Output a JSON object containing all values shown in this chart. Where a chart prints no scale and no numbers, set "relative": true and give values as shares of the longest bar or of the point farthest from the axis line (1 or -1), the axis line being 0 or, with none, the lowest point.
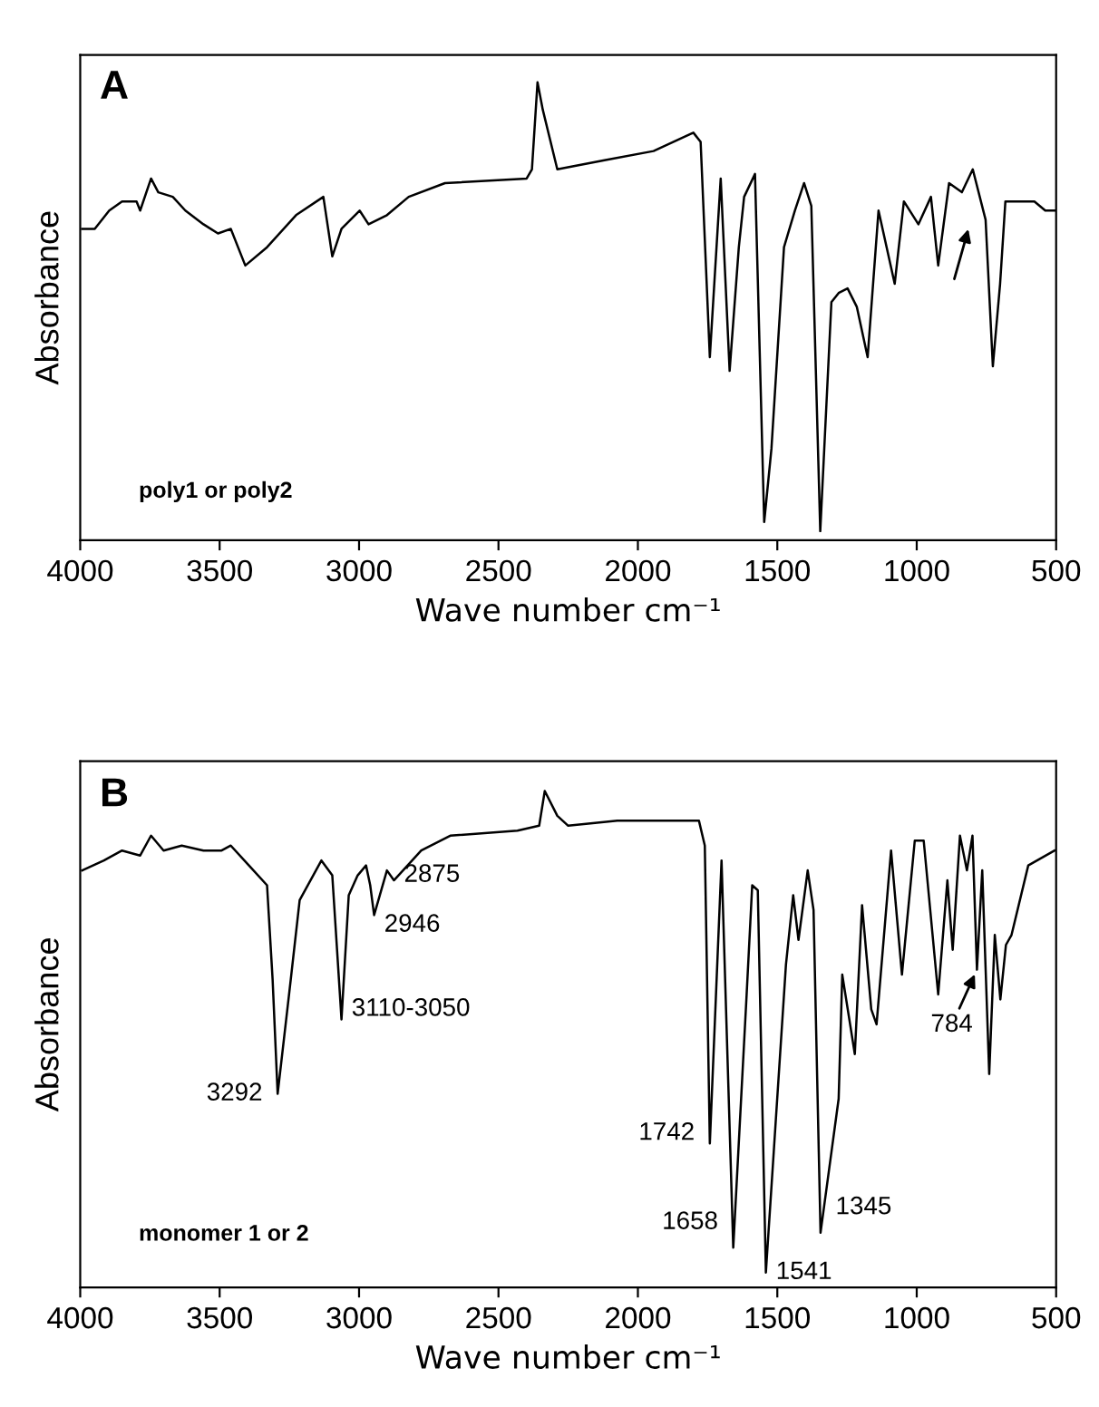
{
  "chart_data": [
    {
      "type": "line",
      "title": "A",
      "xlabel": "Wave number cm⁻¹",
      "ylabel": "Absorbance",
      "relative": true,
      "xlim": [
        4000,
        500
      ],
      "xticks": [
        4000,
        3500,
        3000,
        2500,
        2000,
        1500,
        1000,
        500
      ],
      "tick_labels": "x",
      "grid": false,
      "legend": false,
      "annotations": [
        "poly1 or poly2"
      ],
      "series": [
        {
          "color": "#000000",
          "x": [
            3993,
            3948,
            3896,
            3850,
            3798,
            3785,
            3746,
            3720,
            3668,
            3623,
            3558,
            3506,
            3460,
            3408,
            3330,
            3226,
            3128,
            3096,
            3063,
            2998,
            2966,
            2900,
            2822,
            2692,
            2399,
            2380,
            2360,
            2341,
            2289,
            2120,
            1944,
            1801,
            1775,
            1742,
            1703,
            1671,
            1638,
            1619,
            1580,
            1547,
            1521,
            1476,
            1437,
            1404,
            1378,
            1346,
            1306,
            1280,
            1248,
            1215,
            1176,
            1137,
            1079,
            1046,
            994,
            949,
            923,
            884,
            838,
            799,
            753,
            727,
            701,
            682,
            630,
            578,
            539,
            506
          ],
          "values": [
            0.68,
            0.68,
            0.72,
            0.74,
            0.74,
            0.72,
            0.79,
            0.76,
            0.75,
            0.72,
            0.69,
            0.67,
            0.68,
            0.6,
            0.64,
            0.71,
            0.75,
            0.62,
            0.68,
            0.72,
            0.69,
            0.71,
            0.75,
            0.78,
            0.79,
            0.81,
            1.0,
            0.94,
            0.81,
            0.83,
            0.85,
            0.89,
            0.87,
            0.4,
            0.79,
            0.37,
            0.64,
            0.75,
            0.8,
            0.04,
            0.2,
            0.64,
            0.72,
            0.78,
            0.73,
            0.02,
            0.52,
            0.54,
            0.55,
            0.51,
            0.4,
            0.72,
            0.56,
            0.74,
            0.69,
            0.75,
            0.6,
            0.78,
            0.76,
            0.81,
            0.7,
            0.38,
            0.56,
            0.74,
            0.74,
            0.74,
            0.72,
            0.72
          ]
        }
      ]
    },
    {
      "type": "line",
      "title": "B",
      "xlabel": "Wave number cm⁻¹",
      "ylabel": "Absorbance",
      "relative": true,
      "xlim": [
        4000,
        500
      ],
      "xticks": [
        4000,
        3500,
        3000,
        2500,
        2000,
        1500,
        1000,
        500
      ],
      "tick_labels": "x",
      "grid": false,
      "legend": false,
      "annotations": [
        {
          "text": "3292",
          "x": 3292,
          "y": 0.39
        },
        {
          "text": "3110-3050",
          "x": 3063,
          "y": 0.54
        },
        {
          "text": "2946",
          "x": 2946,
          "y": 0.75
        },
        {
          "text": "2875",
          "x": 2875,
          "y": 0.82
        },
        {
          "text": "1742",
          "x": 1742,
          "y": 0.29
        },
        {
          "text": "1658",
          "x": 1658,
          "y": 0.08
        },
        {
          "text": "1541",
          "x": 1541,
          "y": 0.03
        },
        {
          "text": "1345",
          "x": 1345,
          "y": 0.11
        },
        {
          "text": "784",
          "x": 784,
          "y": 0.64
        },
        "monomer 1 or 2"
      ],
      "series": [
        {
          "color": "#000000",
          "x": [
            3993,
            3915,
            3850,
            3785,
            3746,
            3701,
            3636,
            3558,
            3493,
            3460,
            3395,
            3330,
            3310,
            3292,
            3245,
            3213,
            3135,
            3096,
            3063,
            3037,
            3005,
            2975,
            2960,
            2946,
            2900,
            2875,
            2777,
            2673,
            2432,
            2354,
            2334,
            2289,
            2250,
            2074,
            1944,
            1781,
            1760,
            1742,
            1700,
            1658,
            1610,
            1590,
            1570,
            1541,
            1469,
            1443,
            1424,
            1391,
            1370,
            1345,
            1280,
            1267,
            1222,
            1196,
            1163,
            1144,
            1092,
            1053,
            1007,
            975,
            923,
            890,
            871,
            845,
            820,
            800,
            784,
            765,
            740,
            720,
            700,
            680,
            660,
            600,
            506
          ],
          "values": [
            0.84,
            0.86,
            0.88,
            0.87,
            0.91,
            0.88,
            0.89,
            0.88,
            0.88,
            0.89,
            0.85,
            0.81,
            0.62,
            0.39,
            0.62,
            0.78,
            0.86,
            0.83,
            0.54,
            0.79,
            0.83,
            0.85,
            0.81,
            0.75,
            0.84,
            0.82,
            0.88,
            0.91,
            0.92,
            0.93,
            1.0,
            0.95,
            0.93,
            0.94,
            0.94,
            0.94,
            0.89,
            0.29,
            0.86,
            0.08,
            0.59,
            0.81,
            0.8,
            0.03,
            0.65,
            0.79,
            0.7,
            0.84,
            0.76,
            0.11,
            0.38,
            0.63,
            0.47,
            0.77,
            0.56,
            0.53,
            0.88,
            0.63,
            0.9,
            0.9,
            0.59,
            0.82,
            0.68,
            0.91,
            0.84,
            0.91,
            0.64,
            0.84,
            0.43,
            0.71,
            0.58,
            0.69,
            0.71,
            0.85,
            0.88
          ]
        }
      ]
    }
  ]
}
